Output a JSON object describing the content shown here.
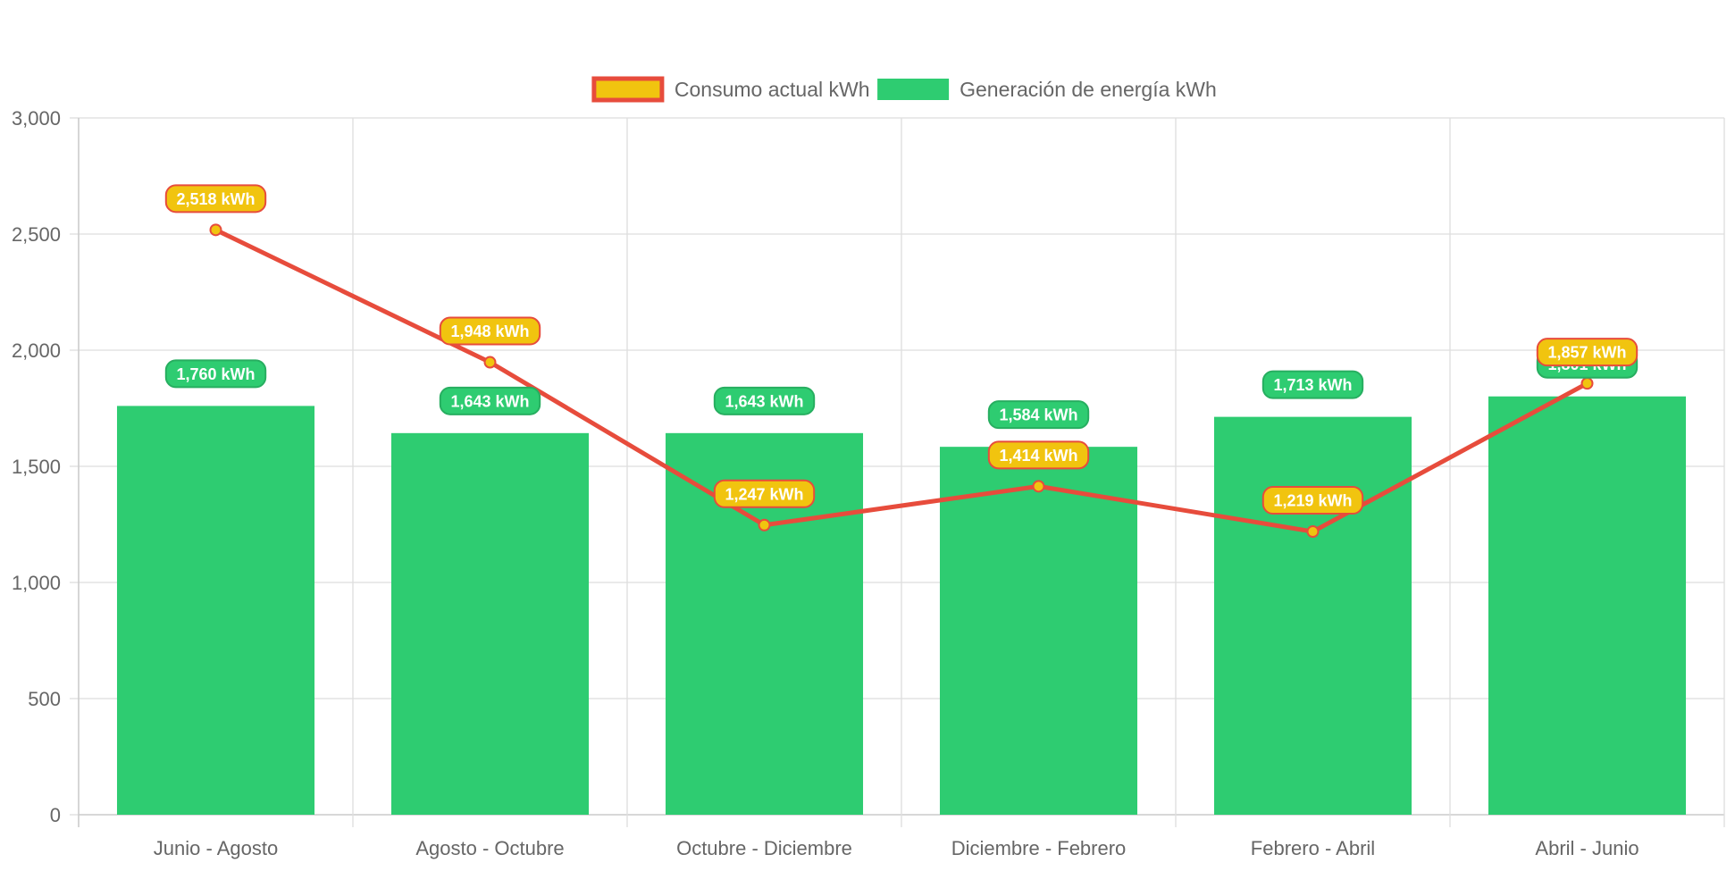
{
  "chart_data": {
    "type": "bar",
    "categories": [
      "Junio - Agosto",
      "Agosto - Octubre",
      "Octubre - Diciembre",
      "Diciembre - Febrero",
      "Febrero - Abril",
      "Abril - Junio"
    ],
    "series": [
      {
        "name": "Generación de energía kWh",
        "type": "bar",
        "values": [
          1760,
          1643,
          1643,
          1584,
          1713,
          1801
        ],
        "labels": [
          "1,760 kWh",
          "1,643 kWh",
          "1,643 kWh",
          "1,584 kWh",
          "1,713 kWh",
          "1,801 kWh"
        ],
        "color": "#2ecc71"
      },
      {
        "name": "Consumo actual kWh",
        "type": "line",
        "values": [
          2518,
          1948,
          1247,
          1414,
          1219,
          1857
        ],
        "labels": [
          "2,518 kWh",
          "1,948 kWh",
          "1,247 kWh",
          "1,414 kWh",
          "1,219 kWh",
          "1,857 kWh"
        ],
        "color": "#e74c3c",
        "fill_color": "#f1c40f"
      }
    ],
    "ylim": [
      0,
      3000
    ],
    "yticks": [
      0,
      500,
      1000,
      1500,
      2000,
      2500,
      3000
    ],
    "ytick_labels": [
      "0",
      "500",
      "1,000",
      "1,500",
      "2,000",
      "2,500",
      "3,000"
    ],
    "grid": true,
    "legend": "top-center",
    "legend_order": [
      "Consumo actual kWh",
      "Generación de energía kWh"
    ]
  }
}
